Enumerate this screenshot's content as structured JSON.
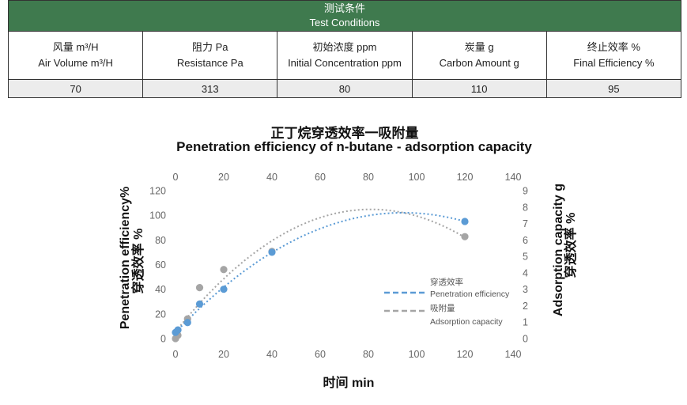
{
  "table": {
    "header_cn": "测试条件",
    "header_en": "Test Conditions",
    "columns": [
      {
        "cn": "风量 m³/H",
        "en": "Air Volume m³/H",
        "value": "70"
      },
      {
        "cn": "阻力 Pa",
        "en": "Resistance Pa",
        "value": "313"
      },
      {
        "cn": "初始浓度 ppm",
        "en": "Initial Concentration ppm",
        "value": "80"
      },
      {
        "cn": "炭量 g",
        "en": "Carbon Amount g",
        "value": "110"
      },
      {
        "cn": "终止效率 %",
        "en": "Final Efficiency %",
        "value": "95"
      }
    ]
  },
  "chart_data": {
    "type": "scatter",
    "title": "正丁烷穿透效率一吸附量",
    "subtitle": "Penetration efficiency of n-butane - adsorption capacity",
    "xlabel": "时间 min",
    "ylabel_left_en": "Penetration efficiency%",
    "ylabel_left_cn": "穿透效率 %",
    "ylabel_right_en": "Adsorption capacity g",
    "ylabel_right_cn": "穿透效率 %",
    "xlim": [
      0,
      140
    ],
    "x_ticks": [
      0,
      20,
      40,
      60,
      80,
      100,
      120,
      140
    ],
    "ylim_left": [
      0,
      120
    ],
    "y_ticks_left": [
      0,
      20,
      40,
      60,
      80,
      100,
      120
    ],
    "ylim_right": [
      0,
      9
    ],
    "y_ticks_right": [
      0,
      1,
      2,
      3,
      4,
      5,
      6,
      7,
      8,
      9
    ],
    "grid": false,
    "legend_position": "bottom-right",
    "series": [
      {
        "name": "穿透效率",
        "name_en": "Penetration efficiency",
        "axis": "left",
        "color": "#5b9bd5",
        "x": [
          0,
          1,
          5,
          10,
          20,
          40,
          120
        ],
        "y": [
          5,
          7,
          13,
          28,
          40,
          70,
          95
        ],
        "trend": "polynomial"
      },
      {
        "name": "吸附量",
        "name_en": "Adsorption capacity",
        "axis": "right",
        "color": "#a5a5a5",
        "x": [
          0,
          1,
          5,
          10,
          20,
          40,
          120
        ],
        "y": [
          0,
          0.2,
          1.2,
          3.1,
          4.2,
          5.3,
          6.2
        ],
        "trend": "polynomial"
      }
    ]
  }
}
